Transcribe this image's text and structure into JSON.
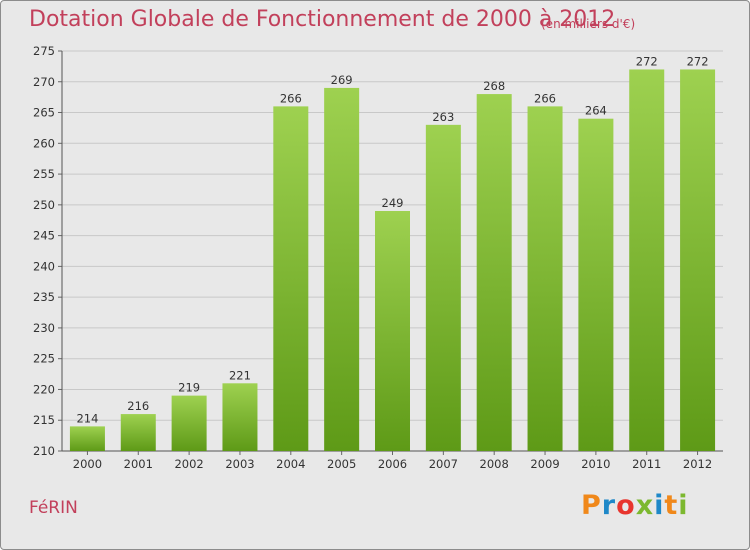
{
  "header": {
    "title": "Dotation Globale de Fonctionnement de 2000 à 2012",
    "subtitle": "(en milliers d'€)"
  },
  "footer": {
    "place": "FéRIN",
    "brand": "Proxiti",
    "brand_colors": [
      "#f0881a",
      "#1e88c8",
      "#e8352e",
      "#7cb82f",
      "#1e88c8",
      "#f0881a",
      "#7cb82f"
    ]
  },
  "colors": {
    "background": "#e8e8e8",
    "bar_top": "#9ed150",
    "bar_bottom": "#5e9a17",
    "grid": "#c8c8c8",
    "title": "#c2405b"
  },
  "chart_data": {
    "type": "bar",
    "title": "Dotation Globale de Fonctionnement de 2000 à 2012",
    "subtitle": "(en milliers d'€)",
    "xlabel": "",
    "ylabel": "",
    "categories": [
      "2000",
      "2001",
      "2002",
      "2003",
      "2004",
      "2005",
      "2006",
      "2007",
      "2008",
      "2009",
      "2010",
      "2011",
      "2012"
    ],
    "values": [
      214,
      216,
      219,
      221,
      266,
      269,
      249,
      263,
      268,
      266,
      264,
      272,
      272
    ],
    "ylim": [
      210,
      275
    ],
    "yticks": [
      210,
      215,
      220,
      225,
      230,
      235,
      240,
      245,
      250,
      255,
      260,
      265,
      270,
      275
    ],
    "grid": true,
    "data_labels": true,
    "legend": "none"
  }
}
